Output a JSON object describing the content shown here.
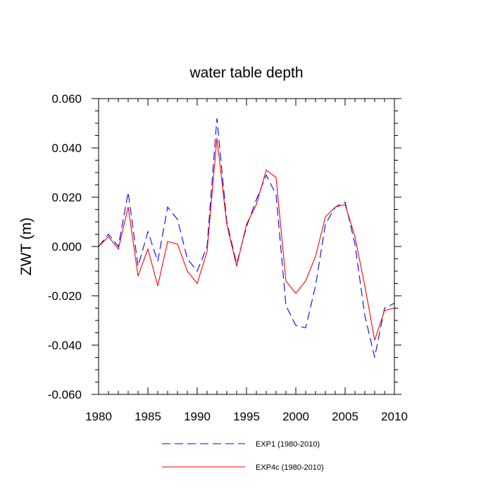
{
  "chart_data": {
    "type": "line",
    "title": "water table depth",
    "ylabel": "ZWT  (m)",
    "xlabel": "",
    "xlim": [
      1980,
      2010
    ],
    "ylim": [
      -0.06,
      0.06
    ],
    "x_ticks": [
      1980,
      1985,
      1990,
      1995,
      2000,
      2005,
      2010
    ],
    "x_tick_labels": [
      "1980",
      "1985",
      "1990",
      "1995",
      "2000",
      "2005",
      "2010"
    ],
    "y_ticks": [
      -0.06,
      -0.04,
      -0.02,
      0.0,
      0.02,
      0.04,
      0.06
    ],
    "y_tick_labels": [
      "-0.060",
      "-0.040",
      "-0.020",
      "0.000",
      "0.020",
      "0.040",
      "0.060"
    ],
    "grid": false,
    "legend_position": "bottom-center",
    "x": [
      1980,
      1981,
      1982,
      1983,
      1984,
      1985,
      1986,
      1987,
      1988,
      1989,
      1990,
      1991,
      1992,
      1993,
      1994,
      1995,
      1996,
      1997,
      1998,
      1999,
      2000,
      2001,
      2002,
      2003,
      2004,
      2005,
      2006,
      2007,
      2008,
      2009,
      2010
    ],
    "series": [
      {
        "name": "EXP1 (1980-2010)",
        "color": "#0000ff",
        "dash": "dashed",
        "values": [
          0.0,
          0.005,
          0.0,
          0.022,
          -0.008,
          0.006,
          -0.006,
          0.016,
          0.011,
          -0.005,
          -0.01,
          0.0,
          0.052,
          0.01,
          -0.007,
          0.008,
          0.019,
          0.029,
          0.021,
          -0.024,
          -0.032,
          -0.033,
          -0.016,
          0.009,
          0.016,
          0.018,
          0.001,
          -0.028,
          -0.045,
          -0.025,
          -0.023
        ]
      },
      {
        "name": "EXP4c (1980-2010)",
        "color": "#ff0000",
        "dash": "solid",
        "values": [
          0.0,
          0.004,
          -0.001,
          0.016,
          -0.012,
          -0.001,
          -0.016,
          0.002,
          0.001,
          -0.01,
          -0.015,
          -0.002,
          0.044,
          0.009,
          -0.008,
          0.009,
          0.017,
          0.031,
          0.028,
          -0.014,
          -0.019,
          -0.014,
          -0.004,
          0.012,
          0.016,
          0.017,
          0.004,
          -0.016,
          -0.038,
          -0.026,
          -0.025
        ]
      }
    ]
  }
}
